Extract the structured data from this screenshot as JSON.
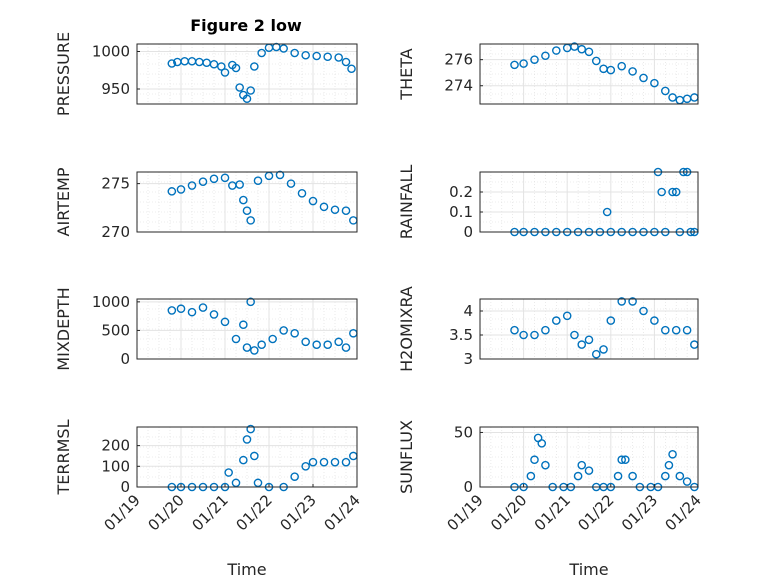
{
  "figure": {
    "title": "Figure 2 low"
  },
  "style": {
    "marker_color": "#0072bd",
    "axis_color": "#262626",
    "grid_color": "#dcdcdc"
  },
  "chart_data": [
    {
      "type": "scatter",
      "title": "Figure 2 low",
      "ylabel": "PRESSURE",
      "xlabel": "",
      "xlim": [
        "2021-01-19",
        "2021-01-24"
      ],
      "ylim": [
        930,
        1010
      ],
      "yticks": [
        950,
        1000
      ],
      "ytick_labels": [
        "950",
        "1000"
      ],
      "xticks": [],
      "xtick_labels": [],
      "series": [
        {
          "x": [
            "2021-01-19T19:00",
            "2021-01-19T22:00",
            "2021-01-20T02:00",
            "2021-01-20T06:00",
            "2021-01-20T10:00",
            "2021-01-20T14:00",
            "2021-01-20T18:00",
            "2021-01-20T22:00",
            "2021-01-21T00:00",
            "2021-01-21T04:00",
            "2021-01-21T06:00",
            "2021-01-21T08:00",
            "2021-01-21T10:00",
            "2021-01-21T12:00",
            "2021-01-21T14:00",
            "2021-01-21T16:00",
            "2021-01-21T20:00",
            "2021-01-22T00:00",
            "2021-01-22T04:00",
            "2021-01-22T08:00",
            "2021-01-22T14:00",
            "2021-01-22T20:00",
            "2021-01-23T02:00",
            "2021-01-23T08:00",
            "2021-01-23T14:00",
            "2021-01-23T18:00",
            "2021-01-23T21:00"
          ],
          "y": [
            984,
            986,
            987,
            987,
            986,
            985,
            983,
            980,
            972,
            982,
            978,
            952,
            942,
            937,
            948,
            980,
            998,
            1005,
            1006,
            1004,
            998,
            995,
            994,
            993,
            992,
            986,
            977
          ]
        }
      ]
    },
    {
      "type": "scatter",
      "title": "",
      "ylabel": "THETA",
      "xlabel": "",
      "xlim": [
        "2021-01-19",
        "2021-01-24"
      ],
      "ylim": [
        272.6,
        277.2
      ],
      "yticks": [
        274,
        276
      ],
      "ytick_labels": [
        "274",
        "276"
      ],
      "xticks": [],
      "xtick_labels": [],
      "series": [
        {
          "x": [
            "2021-01-19T19:00",
            "2021-01-20T00:00",
            "2021-01-20T06:00",
            "2021-01-20T12:00",
            "2021-01-20T18:00",
            "2021-01-21T00:00",
            "2021-01-21T04:00",
            "2021-01-21T08:00",
            "2021-01-21T12:00",
            "2021-01-21T16:00",
            "2021-01-21T20:00",
            "2021-01-22T00:00",
            "2021-01-22T06:00",
            "2021-01-22T12:00",
            "2021-01-22T18:00",
            "2021-01-23T00:00",
            "2021-01-23T06:00",
            "2021-01-23T10:00",
            "2021-01-23T14:00",
            "2021-01-23T18:00",
            "2021-01-23T22:00"
          ],
          "y": [
            275.6,
            275.7,
            276.0,
            276.3,
            276.7,
            276.9,
            277.0,
            276.8,
            276.6,
            275.9,
            275.3,
            275.2,
            275.5,
            275.1,
            274.6,
            274.2,
            273.6,
            273.1,
            272.9,
            273.0,
            273.1
          ]
        }
      ]
    },
    {
      "type": "scatter",
      "title": "",
      "ylabel": "AIR_TEMP",
      "xlabel": "",
      "xlim": [
        "2021-01-19",
        "2021-01-24"
      ],
      "ylim": [
        270,
        276.2
      ],
      "yticks": [
        270,
        275
      ],
      "ytick_labels": [
        "270",
        "275"
      ],
      "xticks": [],
      "xtick_labels": [],
      "series": [
        {
          "x": [
            "2021-01-19T19:00",
            "2021-01-20T00:00",
            "2021-01-20T06:00",
            "2021-01-20T12:00",
            "2021-01-20T18:00",
            "2021-01-21T00:00",
            "2021-01-21T04:00",
            "2021-01-21T08:00",
            "2021-01-21T10:00",
            "2021-01-21T12:00",
            "2021-01-21T14:00",
            "2021-01-21T18:00",
            "2021-01-22T00:00",
            "2021-01-22T06:00",
            "2021-01-22T12:00",
            "2021-01-22T18:00",
            "2021-01-23T00:00",
            "2021-01-23T06:00",
            "2021-01-23T12:00",
            "2021-01-23T18:00",
            "2021-01-23T22:00"
          ],
          "y": [
            274.2,
            274.4,
            274.8,
            275.2,
            275.5,
            275.6,
            274.8,
            274.9,
            273.3,
            272.2,
            271.2,
            275.3,
            275.8,
            275.9,
            275.0,
            274.0,
            273.2,
            272.6,
            272.3,
            272.2,
            271.2
          ]
        }
      ]
    },
    {
      "type": "scatter",
      "title": "",
      "ylabel": "RAINFALL",
      "xlabel": "",
      "xlim": [
        "2021-01-19",
        "2021-01-24"
      ],
      "ylim": [
        0,
        0.3
      ],
      "yticks": [
        0,
        0.1,
        0.2
      ],
      "ytick_labels": [
        "0",
        "0.1",
        "0.2"
      ],
      "xticks": [],
      "xtick_labels": [],
      "series": [
        {
          "x": [
            "2021-01-19T19:00",
            "2021-01-20T00:00",
            "2021-01-20T06:00",
            "2021-01-20T12:00",
            "2021-01-20T18:00",
            "2021-01-21T00:00",
            "2021-01-21T06:00",
            "2021-01-21T12:00",
            "2021-01-21T18:00",
            "2021-01-21T22:00",
            "2021-01-22T00:00",
            "2021-01-22T06:00",
            "2021-01-22T12:00",
            "2021-01-22T18:00",
            "2021-01-23T00:00",
            "2021-01-23T02:00",
            "2021-01-23T04:00",
            "2021-01-23T06:00",
            "2021-01-23T10:00",
            "2021-01-23T12:00",
            "2021-01-23T14:00",
            "2021-01-23T16:00",
            "2021-01-23T18:00",
            "2021-01-23T20:00",
            "2021-01-23T22:00"
          ],
          "y": [
            0,
            0,
            0,
            0,
            0,
            0,
            0,
            0,
            0,
            0.1,
            0,
            0,
            0,
            0,
            0,
            0.3,
            0.2,
            0,
            0.2,
            0.2,
            0,
            0.3,
            0.3,
            0,
            0
          ]
        }
      ]
    },
    {
      "type": "scatter",
      "title": "",
      "ylabel": "MIXDEPTH",
      "xlabel": "",
      "xlim": [
        "2021-01-19",
        "2021-01-24"
      ],
      "ylim": [
        0,
        1050
      ],
      "yticks": [
        0,
        500,
        1000
      ],
      "ytick_labels": [
        "0",
        "500",
        "1000"
      ],
      "xticks": [],
      "xtick_labels": [],
      "series": [
        {
          "x": [
            "2021-01-19T19:00",
            "2021-01-20T00:00",
            "2021-01-20T06:00",
            "2021-01-20T12:00",
            "2021-01-20T18:00",
            "2021-01-21T00:00",
            "2021-01-21T06:00",
            "2021-01-21T10:00",
            "2021-01-21T12:00",
            "2021-01-21T14:00",
            "2021-01-21T16:00",
            "2021-01-21T20:00",
            "2021-01-22T02:00",
            "2021-01-22T08:00",
            "2021-01-22T14:00",
            "2021-01-22T20:00",
            "2021-01-23T02:00",
            "2021-01-23T08:00",
            "2021-01-23T14:00",
            "2021-01-23T18:00",
            "2021-01-23T22:00"
          ],
          "y": [
            850,
            880,
            820,
            900,
            780,
            650,
            350,
            600,
            200,
            1000,
            150,
            250,
            350,
            500,
            450,
            300,
            250,
            250,
            300,
            200,
            450
          ]
        }
      ]
    },
    {
      "type": "scatter",
      "title": "",
      "ylabel": "H2OMIXRA",
      "xlabel": "",
      "xlim": [
        "2021-01-19",
        "2021-01-24"
      ],
      "ylim": [
        3,
        4.25
      ],
      "yticks": [
        3,
        3.5,
        4
      ],
      "ytick_labels": [
        "3",
        "3.5",
        "4"
      ],
      "xticks": [],
      "xtick_labels": [],
      "series": [
        {
          "x": [
            "2021-01-19T19:00",
            "2021-01-20T00:00",
            "2021-01-20T06:00",
            "2021-01-20T12:00",
            "2021-01-20T18:00",
            "2021-01-21T00:00",
            "2021-01-21T04:00",
            "2021-01-21T08:00",
            "2021-01-21T12:00",
            "2021-01-21T16:00",
            "2021-01-21T20:00",
            "2021-01-22T00:00",
            "2021-01-22T06:00",
            "2021-01-22T12:00",
            "2021-01-22T18:00",
            "2021-01-23T00:00",
            "2021-01-23T06:00",
            "2021-01-23T12:00",
            "2021-01-23T18:00",
            "2021-01-23T22:00"
          ],
          "y": [
            3.6,
            3.5,
            3.5,
            3.6,
            3.8,
            3.9,
            3.5,
            3.3,
            3.4,
            3.1,
            3.2,
            3.8,
            4.2,
            4.2,
            4.0,
            3.8,
            3.6,
            3.6,
            3.6,
            3.3
          ]
        }
      ]
    },
    {
      "type": "scatter",
      "title": "",
      "ylabel": "TERR_MSL",
      "xlabel": "Time",
      "xlim": [
        "2021-01-19",
        "2021-01-24"
      ],
      "ylim": [
        0,
        290
      ],
      "yticks": [
        0,
        100,
        200
      ],
      "ytick_labels": [
        "0",
        "100",
        "200"
      ],
      "xticks": [
        "2021-01-19",
        "2021-01-20",
        "2021-01-21",
        "2021-01-22",
        "2021-01-23",
        "2021-01-24"
      ],
      "xtick_labels": [
        "01/19",
        "01/20",
        "01/21",
        "01/22",
        "01/23",
        "01/24"
      ],
      "series": [
        {
          "x": [
            "2021-01-19T19:00",
            "2021-01-20T00:00",
            "2021-01-20T06:00",
            "2021-01-20T12:00",
            "2021-01-20T18:00",
            "2021-01-21T00:00",
            "2021-01-21T02:00",
            "2021-01-21T06:00",
            "2021-01-21T10:00",
            "2021-01-21T12:00",
            "2021-01-21T14:00",
            "2021-01-21T16:00",
            "2021-01-21T18:00",
            "2021-01-22T00:00",
            "2021-01-22T08:00",
            "2021-01-22T14:00",
            "2021-01-22T20:00",
            "2021-01-23T00:00",
            "2021-01-23T06:00",
            "2021-01-23T12:00",
            "2021-01-23T18:00",
            "2021-01-23T22:00"
          ],
          "y": [
            0,
            0,
            0,
            0,
            0,
            0,
            70,
            20,
            130,
            230,
            280,
            150,
            20,
            0,
            0,
            50,
            100,
            120,
            120,
            120,
            120,
            150
          ]
        }
      ]
    },
    {
      "type": "scatter",
      "title": "",
      "ylabel": "SUN_FLUX",
      "xlabel": "Time",
      "xlim": [
        "2021-01-19",
        "2021-01-24"
      ],
      "ylim": [
        0,
        55
      ],
      "yticks": [
        0,
        50
      ],
      "ytick_labels": [
        "0",
        "50"
      ],
      "xticks": [
        "2021-01-19",
        "2021-01-20",
        "2021-01-21",
        "2021-01-22",
        "2021-01-23",
        "2021-01-24"
      ],
      "xtick_labels": [
        "01/19",
        "01/20",
        "01/21",
        "01/22",
        "01/23",
        "01/24"
      ],
      "series": [
        {
          "x": [
            "2021-01-19T19:00",
            "2021-01-20T00:00",
            "2021-01-20T04:00",
            "2021-01-20T06:00",
            "2021-01-20T08:00",
            "2021-01-20T10:00",
            "2021-01-20T12:00",
            "2021-01-20T16:00",
            "2021-01-20T22:00",
            "2021-01-21T02:00",
            "2021-01-21T06:00",
            "2021-01-21T08:00",
            "2021-01-21T12:00",
            "2021-01-21T16:00",
            "2021-01-21T20:00",
            "2021-01-22T00:00",
            "2021-01-22T04:00",
            "2021-01-22T06:00",
            "2021-01-22T08:00",
            "2021-01-22T12:00",
            "2021-01-22T16:00",
            "2021-01-22T22:00",
            "2021-01-23T02:00",
            "2021-01-23T06:00",
            "2021-01-23T08:00",
            "2021-01-23T10:00",
            "2021-01-23T14:00",
            "2021-01-23T18:00",
            "2021-01-23T22:00"
          ],
          "y": [
            0,
            0,
            10,
            25,
            45,
            40,
            20,
            0,
            0,
            0,
            10,
            20,
            15,
            0,
            0,
            0,
            10,
            25,
            25,
            10,
            0,
            0,
            0,
            10,
            20,
            30,
            10,
            5,
            0
          ]
        }
      ]
    }
  ]
}
